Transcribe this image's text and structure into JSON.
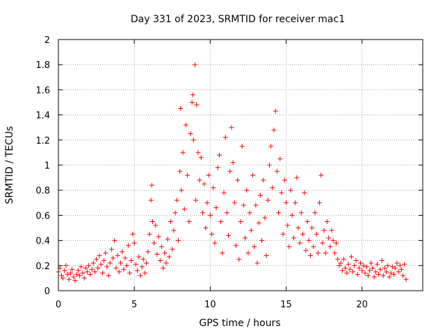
{
  "chart_data": {
    "type": "scatter",
    "title": "Day 331 of 2023, SRMTID for receiver mac1",
    "xlabel": "GPS time / hours",
    "ylabel": "SRMTID / TECUs",
    "xlim": [
      0,
      24
    ],
    "ylim": [
      0,
      2
    ],
    "xticks": [
      0,
      5,
      10,
      15,
      20
    ],
    "yticks": [
      0,
      0.2,
      0.4,
      0.6,
      0.8,
      1,
      1.2,
      1.4,
      1.6,
      1.8,
      2
    ],
    "xtick_labels": [
      "0",
      "5",
      "10",
      "15",
      "20"
    ],
    "ytick_labels": [
      "0",
      "0.2",
      "0.4",
      "0.6",
      "0.8",
      "1",
      "1.2",
      "1.4",
      "1.6",
      "1.8",
      "2"
    ],
    "grid": true,
    "marker": "+",
    "color": "#ff0000",
    "series": [
      {
        "name": "SRMTID",
        "points": [
          [
            0.0,
            0.15
          ],
          [
            0.1,
            0.18
          ],
          [
            0.2,
            0.12
          ],
          [
            0.3,
            0.1
          ],
          [
            0.4,
            0.16
          ],
          [
            0.5,
            0.2
          ],
          [
            0.6,
            0.13
          ],
          [
            0.7,
            0.09
          ],
          [
            0.8,
            0.14
          ],
          [
            0.9,
            0.17
          ],
          [
            1.0,
            0.11
          ],
          [
            1.1,
            0.08
          ],
          [
            1.2,
            0.13
          ],
          [
            1.3,
            0.16
          ],
          [
            1.4,
            0.12
          ],
          [
            1.5,
            0.19
          ],
          [
            1.6,
            0.14
          ],
          [
            1.7,
            0.1
          ],
          [
            1.8,
            0.18
          ],
          [
            1.9,
            0.15
          ],
          [
            2.0,
            0.2
          ],
          [
            2.1,
            0.13
          ],
          [
            2.2,
            0.17
          ],
          [
            2.3,
            0.22
          ],
          [
            2.4,
            0.15
          ],
          [
            2.5,
            0.25
          ],
          [
            2.6,
            0.18
          ],
          [
            2.7,
            0.28
          ],
          [
            2.8,
            0.21
          ],
          [
            2.9,
            0.14
          ],
          [
            3.0,
            0.24
          ],
          [
            3.1,
            0.3
          ],
          [
            3.2,
            0.19
          ],
          [
            3.3,
            0.12
          ],
          [
            3.4,
            0.22
          ],
          [
            3.5,
            0.33
          ],
          [
            3.6,
            0.26
          ],
          [
            3.7,
            0.4
          ],
          [
            3.8,
            0.18
          ],
          [
            3.9,
            0.28
          ],
          [
            4.0,
            0.15
          ],
          [
            4.1,
            0.22
          ],
          [
            4.2,
            0.31
          ],
          [
            4.3,
            0.17
          ],
          [
            4.4,
            0.26
          ],
          [
            4.5,
            0.2
          ],
          [
            4.6,
            0.36
          ],
          [
            4.7,
            0.14
          ],
          [
            4.8,
            0.24
          ],
          [
            4.9,
            0.45
          ],
          [
            5.0,
            0.38
          ],
          [
            5.1,
            0.21
          ],
          [
            5.2,
            0.16
          ],
          [
            5.3,
            0.27
          ],
          [
            5.4,
            0.12
          ],
          [
            5.5,
            0.19
          ],
          [
            5.6,
            0.25
          ],
          [
            5.7,
            0.14
          ],
          [
            5.8,
            0.22
          ],
          [
            5.9,
            0.31
          ],
          [
            6.0,
            0.45
          ],
          [
            6.1,
            0.72
          ],
          [
            6.15,
            0.84
          ],
          [
            6.2,
            0.55
          ],
          [
            6.3,
            0.38
          ],
          [
            6.4,
            0.52
          ],
          [
            6.5,
            0.29
          ],
          [
            6.6,
            0.43
          ],
          [
            6.7,
            0.24
          ],
          [
            6.8,
            0.35
          ],
          [
            6.9,
            0.18
          ],
          [
            7.0,
            0.3
          ],
          [
            7.1,
            0.22
          ],
          [
            7.2,
            0.41
          ],
          [
            7.3,
            0.27
          ],
          [
            7.4,
            0.55
          ],
          [
            7.5,
            0.33
          ],
          [
            7.6,
            0.48
          ],
          [
            7.7,
            0.62
          ],
          [
            7.8,
            0.72
          ],
          [
            7.9,
            0.4
          ],
          [
            8.0,
            0.95
          ],
          [
            8.05,
            1.45
          ],
          [
            8.1,
            0.8
          ],
          [
            8.2,
            1.1
          ],
          [
            8.3,
            0.65
          ],
          [
            8.4,
            1.32
          ],
          [
            8.5,
            0.92
          ],
          [
            8.6,
            0.55
          ],
          [
            8.7,
            1.25
          ],
          [
            8.8,
            1.5
          ],
          [
            8.85,
            1.56
          ],
          [
            8.9,
            1.2
          ],
          [
            9.0,
            1.8
          ],
          [
            9.05,
            0.72
          ],
          [
            9.1,
            1.48
          ],
          [
            9.2,
            1.1
          ],
          [
            9.3,
            0.88
          ],
          [
            9.4,
            1.06
          ],
          [
            9.5,
            0.62
          ],
          [
            9.6,
            0.85
          ],
          [
            9.7,
            0.5
          ],
          [
            9.8,
            0.7
          ],
          [
            9.9,
            0.92
          ],
          [
            10.0,
            0.6
          ],
          [
            10.1,
            0.45
          ],
          [
            10.2,
            0.82
          ],
          [
            10.3,
            0.38
          ],
          [
            10.4,
            0.66
          ],
          [
            10.5,
            0.98
          ],
          [
            10.6,
            1.08
          ],
          [
            10.7,
            0.55
          ],
          [
            10.8,
            0.3
          ],
          [
            10.9,
            0.78
          ],
          [
            11.0,
            1.22
          ],
          [
            11.1,
            0.62
          ],
          [
            11.2,
            0.44
          ],
          [
            11.3,
            0.95
          ],
          [
            11.4,
            1.3
          ],
          [
            11.5,
            1.02
          ],
          [
            11.6,
            0.7
          ],
          [
            11.7,
            0.36
          ],
          [
            11.8,
            0.88
          ],
          [
            11.9,
            0.25
          ],
          [
            12.0,
            0.55
          ],
          [
            12.1,
            1.15
          ],
          [
            12.2,
            0.68
          ],
          [
            12.3,
            0.42
          ],
          [
            12.4,
            0.8
          ],
          [
            12.5,
            0.3
          ],
          [
            12.6,
            0.62
          ],
          [
            12.7,
            0.48
          ],
          [
            12.8,
            0.92
          ],
          [
            12.9,
            0.35
          ],
          [
            13.0,
            0.68
          ],
          [
            13.1,
            0.22
          ],
          [
            13.2,
            0.54
          ],
          [
            13.3,
            0.76
          ],
          [
            13.4,
            0.4
          ],
          [
            13.5,
            0.88
          ],
          [
            13.6,
            0.58
          ],
          [
            13.7,
            0.28
          ],
          [
            13.8,
            0.72
          ],
          [
            13.9,
            1.0
          ],
          [
            14.0,
            1.15
          ],
          [
            14.1,
            0.82
          ],
          [
            14.2,
            1.28
          ],
          [
            14.3,
            1.43
          ],
          [
            14.4,
            0.95
          ],
          [
            14.5,
            0.62
          ],
          [
            14.6,
            1.05
          ],
          [
            14.7,
            0.78
          ],
          [
            14.8,
            0.45
          ],
          [
            14.9,
            0.88
          ],
          [
            15.0,
            0.7
          ],
          [
            15.1,
            0.52
          ],
          [
            15.2,
            0.35
          ],
          [
            15.3,
            0.8
          ],
          [
            15.4,
            0.6
          ],
          [
            15.5,
            0.42
          ],
          [
            15.6,
            0.7
          ],
          [
            15.7,
            0.9
          ],
          [
            15.8,
            0.5
          ],
          [
            15.9,
            0.38
          ],
          [
            16.0,
            0.62
          ],
          [
            16.1,
            0.45
          ],
          [
            16.2,
            0.78
          ],
          [
            16.3,
            0.32
          ],
          [
            16.4,
            0.55
          ],
          [
            16.5,
            0.4
          ],
          [
            16.6,
            0.28
          ],
          [
            16.7,
            0.5
          ],
          [
            16.8,
            0.35
          ],
          [
            16.9,
            0.62
          ],
          [
            17.0,
            0.45
          ],
          [
            17.1,
            0.3
          ],
          [
            17.2,
            0.7
          ],
          [
            17.3,
            0.92
          ],
          [
            17.4,
            0.38
          ],
          [
            17.5,
            0.48
          ],
          [
            17.6,
            0.3
          ],
          [
            17.7,
            0.55
          ],
          [
            17.8,
            0.42
          ],
          [
            17.9,
            0.35
          ],
          [
            18.0,
            0.48
          ],
          [
            18.1,
            0.4
          ],
          [
            18.2,
            0.3
          ],
          [
            18.3,
            0.38
          ],
          [
            18.4,
            0.25
          ],
          [
            18.5,
            0.2
          ],
          [
            18.6,
            0.22
          ],
          [
            18.7,
            0.16
          ],
          [
            18.8,
            0.25
          ],
          [
            18.9,
            0.18
          ],
          [
            19.0,
            0.14
          ],
          [
            19.1,
            0.21
          ],
          [
            19.2,
            0.17
          ],
          [
            19.3,
            0.27
          ],
          [
            19.4,
            0.15
          ],
          [
            19.5,
            0.2
          ],
          [
            19.6,
            0.24
          ],
          [
            19.7,
            0.13
          ],
          [
            19.8,
            0.18
          ],
          [
            19.9,
            0.22
          ],
          [
            20.0,
            0.16
          ],
          [
            20.1,
            0.2
          ],
          [
            20.2,
            0.14
          ],
          [
            20.3,
            0.19
          ],
          [
            20.4,
            0.12
          ],
          [
            20.5,
            0.16
          ],
          [
            20.6,
            0.22
          ],
          [
            20.7,
            0.18
          ],
          [
            20.8,
            0.11
          ],
          [
            20.9,
            0.15
          ],
          [
            21.0,
            0.21
          ],
          [
            21.1,
            0.13
          ],
          [
            21.2,
            0.17
          ],
          [
            21.3,
            0.24
          ],
          [
            21.4,
            0.12
          ],
          [
            21.5,
            0.18
          ],
          [
            21.6,
            0.15
          ],
          [
            21.7,
            0.2
          ],
          [
            21.8,
            0.11
          ],
          [
            21.9,
            0.14
          ],
          [
            22.0,
            0.19
          ],
          [
            22.1,
            0.13
          ],
          [
            22.2,
            0.18
          ],
          [
            22.3,
            0.22
          ],
          [
            22.4,
            0.15
          ],
          [
            22.5,
            0.2
          ],
          [
            22.6,
            0.17
          ],
          [
            22.7,
            0.12
          ],
          [
            22.8,
            0.21
          ],
          [
            22.9,
            0.09
          ]
        ]
      }
    ]
  }
}
